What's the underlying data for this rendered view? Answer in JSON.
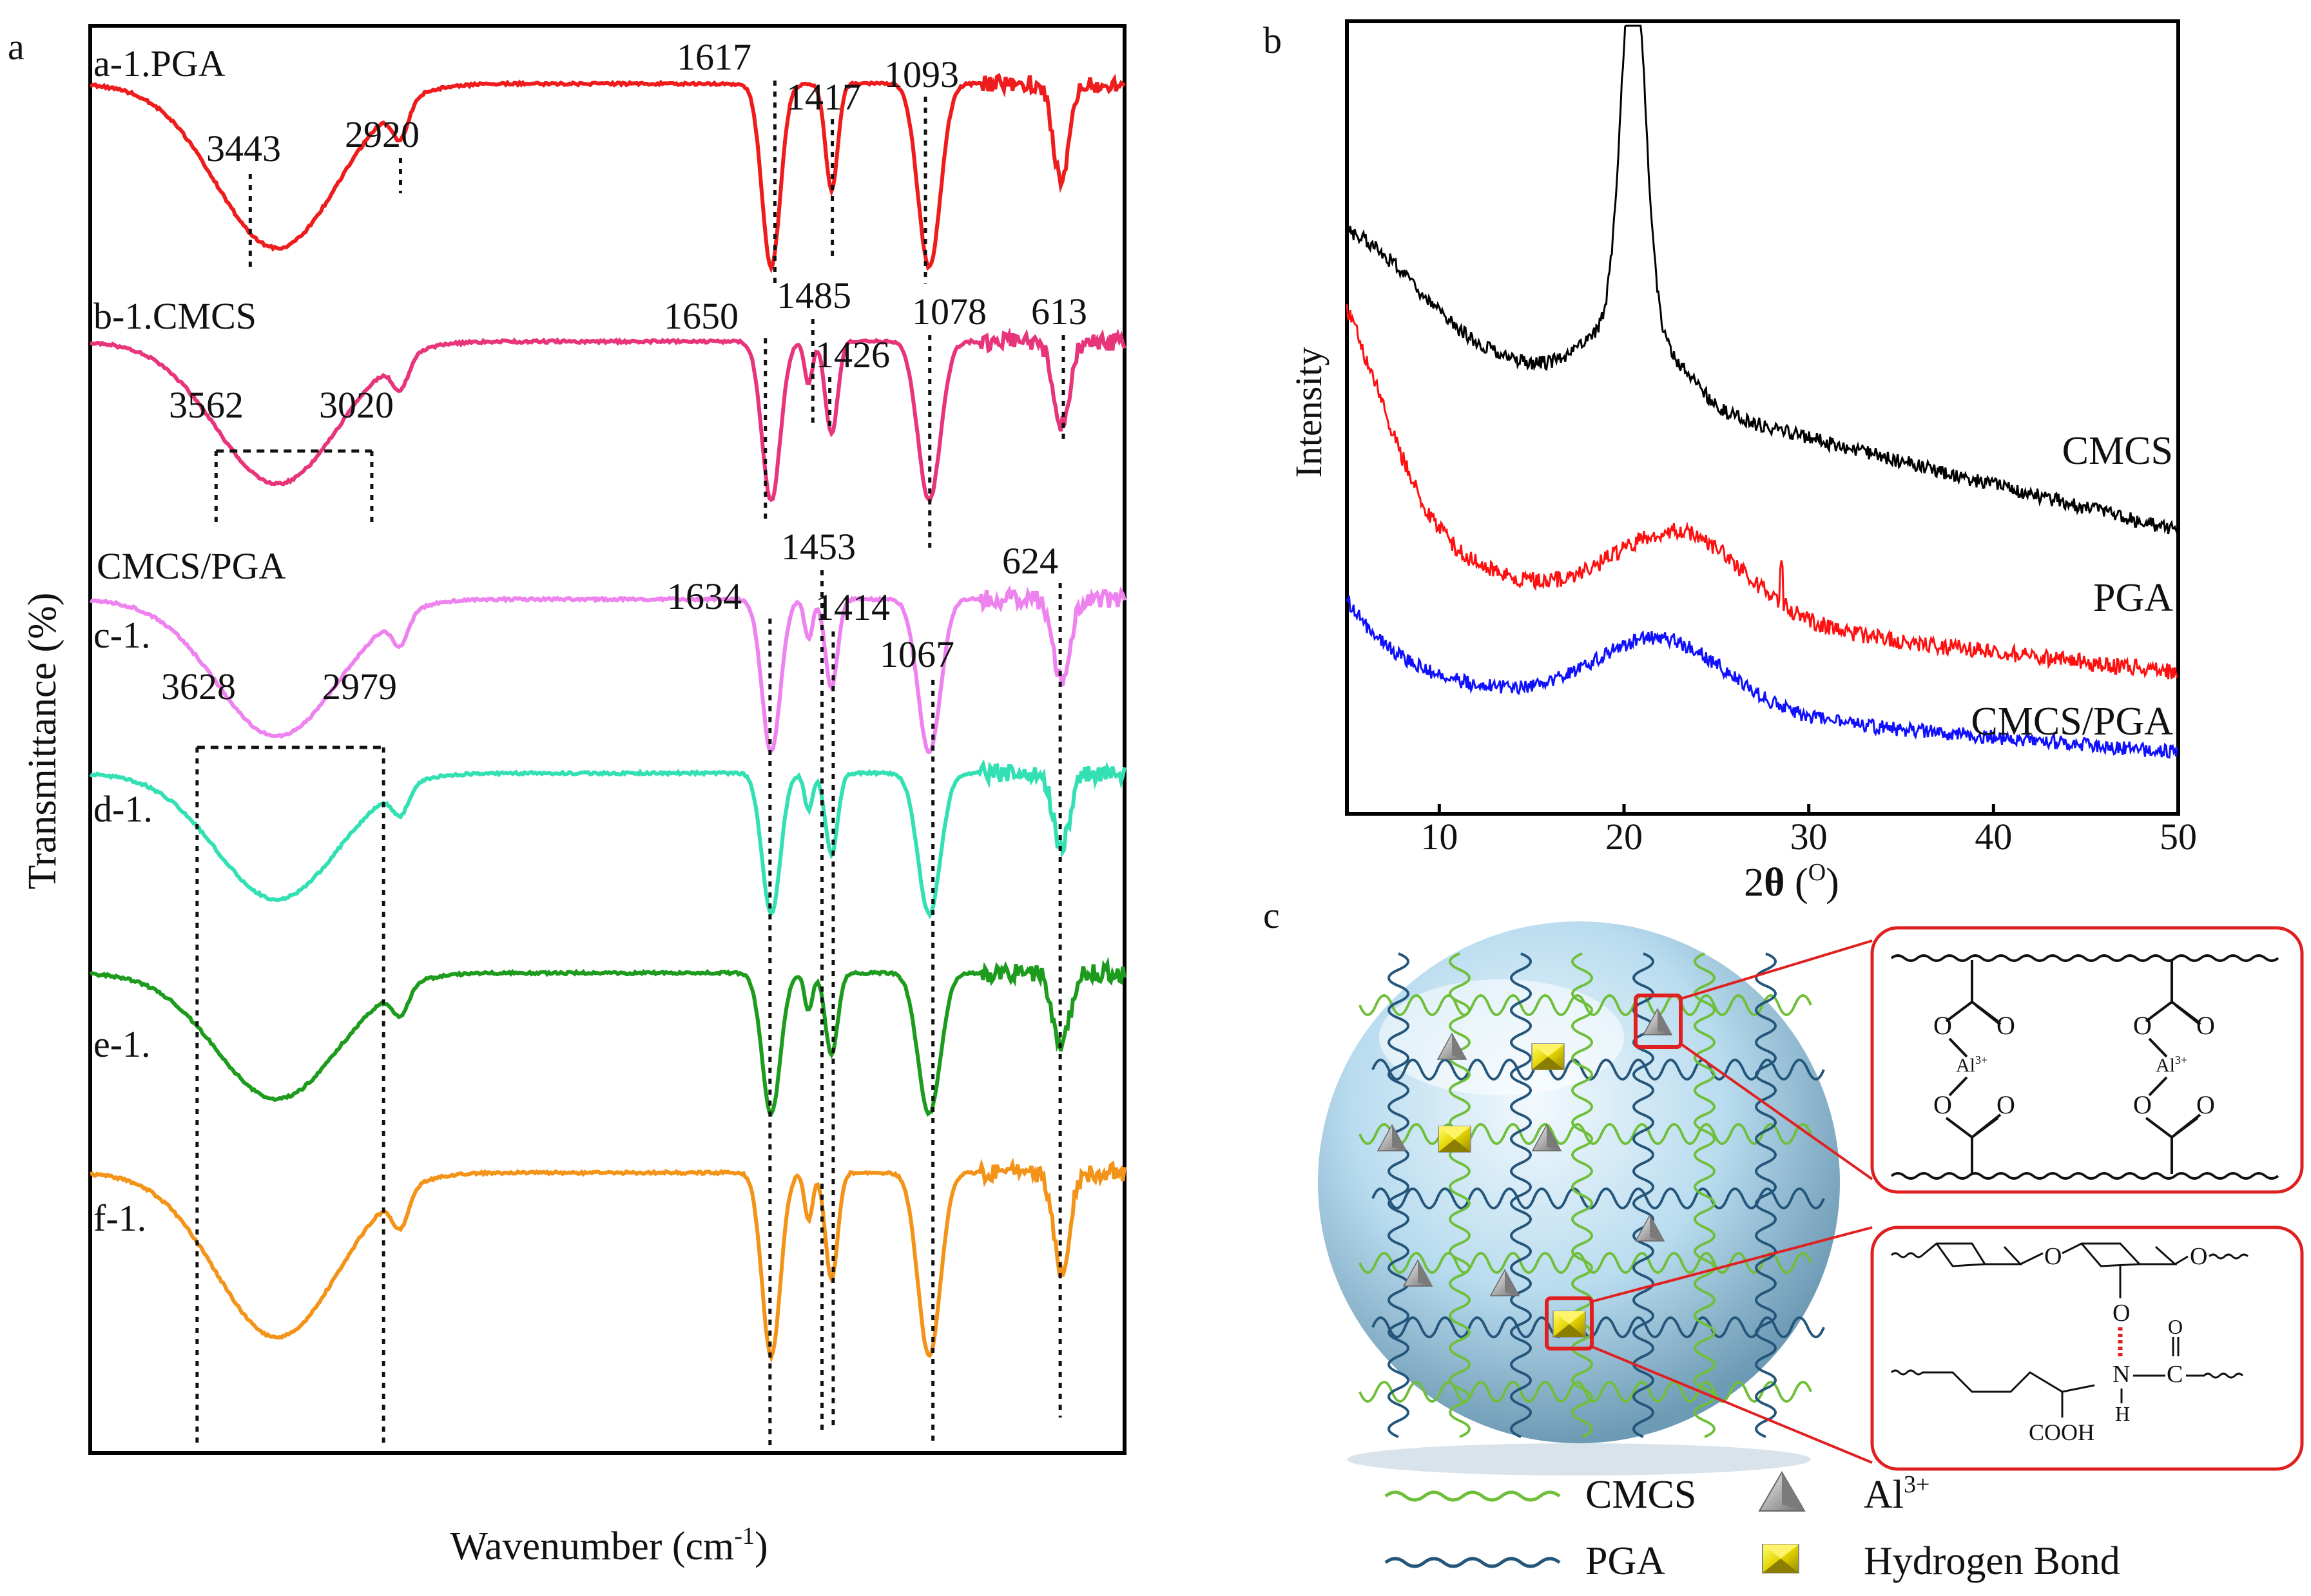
{
  "panels": {
    "a": {
      "letter": "a",
      "chart_data": {
        "type": "line",
        "title": "",
        "xlabel": "Wavenumber (cm-1)",
        "xlabel_main": "Wavenumber (cm",
        "xlabel_sup": "-1",
        "xlabel_close": ")",
        "ylabel": "Transmittance (%)",
        "x_direction": "decreasing",
        "xlim": [
          4000,
          400
        ],
        "grid": false,
        "series": [
          {
            "name": "a-1.PGA",
            "color": "#ee1c1c",
            "peaks": [
              {
                "label": "3443",
                "wn": 3443
              },
              {
                "label": "2920",
                "wn": 2920
              },
              {
                "label": "1617",
                "wn": 1617
              },
              {
                "label": "1417",
                "wn": 1417
              },
              {
                "label": "1093",
                "wn": 1093
              }
            ]
          },
          {
            "name": "b-1.CMCS",
            "color": "#e8347a",
            "peaks": [
              {
                "label": "3562",
                "wn": 3562
              },
              {
                "label": "3020",
                "wn": 3020
              },
              {
                "label": "1650",
                "wn": 1650
              },
              {
                "label": "1485",
                "wn": 1485
              },
              {
                "label": "1426",
                "wn": 1426
              },
              {
                "label": "1078",
                "wn": 1078
              },
              {
                "label": "613",
                "wn": 613
              }
            ]
          },
          {
            "name": "c-1.",
            "color": "#ee82ee",
            "peaks": [
              {
                "label": "3628",
                "wn": 3628
              },
              {
                "label": "2979",
                "wn": 2979
              },
              {
                "label": "1634",
                "wn": 1634
              },
              {
                "label": "1453",
                "wn": 1453
              },
              {
                "label": "1414",
                "wn": 1414
              },
              {
                "label": "1067",
                "wn": 1067
              },
              {
                "label": "624",
                "wn": 624
              }
            ]
          },
          {
            "name": "d-1.",
            "color": "#33e0b4",
            "peaks": []
          },
          {
            "name": "e-1.",
            "color": "#1d9b1d",
            "peaks": []
          },
          {
            "name": "f-1.",
            "color": "#f39318",
            "peaks": []
          }
        ],
        "group_label": "CMCS/PGA"
      }
    },
    "b": {
      "letter": "b",
      "chart_data": {
        "type": "line",
        "title": "",
        "xlabel": "2θ (O)",
        "xlabel_main": "2",
        "xlabel_theta": "θ",
        "xlabel_unit": " (",
        "xlabel_sup": "O",
        "xlabel_close": ")",
        "ylabel": "Intensity",
        "xlim": [
          5,
          50
        ],
        "xticks": [
          10,
          20,
          30,
          40,
          50
        ],
        "grid": false,
        "series": [
          {
            "name": "CMCS",
            "color": "#000000",
            "peak_2theta": 20.5
          },
          {
            "name": "PGA",
            "color": "#ff1010",
            "peak_2theta": 23
          },
          {
            "name": "CMCS/PGA",
            "color": "#1010ff",
            "peak_2theta": 22
          }
        ]
      }
    },
    "c": {
      "letter": "c",
      "ion_label": "Al3+",
      "ion_base": "Al",
      "ion_sup": "3+",
      "chem_labels": {
        "O": "O",
        "N": "N",
        "C": "C",
        "H": "H",
        "COOH": "COOH"
      },
      "legend": [
        {
          "label": "CMCS",
          "color": "#6fbf3a",
          "kind": "wave"
        },
        {
          "label": "PGA",
          "color": "#24557a",
          "kind": "wave"
        },
        {
          "label_base": "Al",
          "label_sup": "3+",
          "kind": "triangle"
        },
        {
          "label": "Hydrogen Bond",
          "kind": "cube"
        }
      ]
    }
  }
}
